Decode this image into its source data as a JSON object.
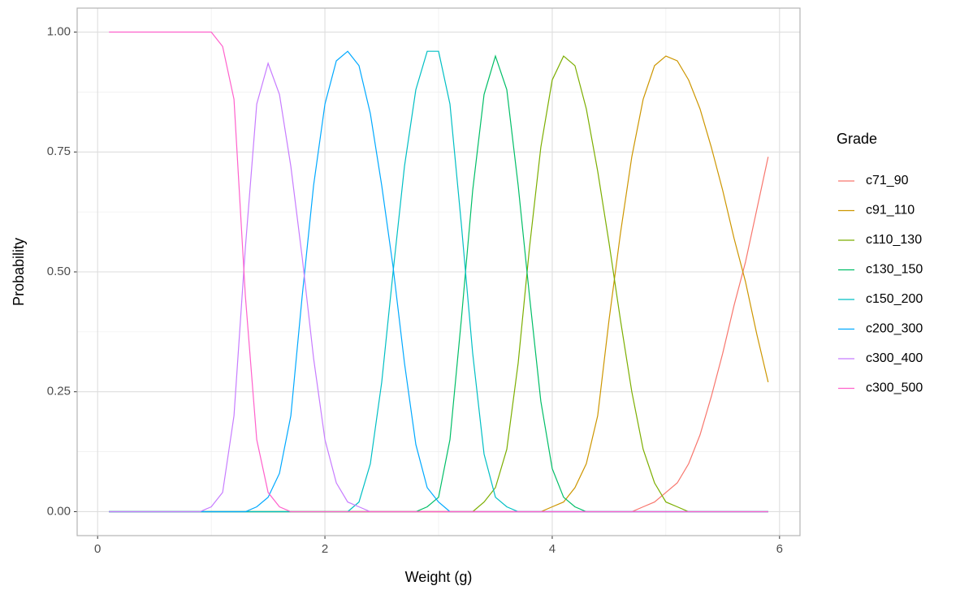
{
  "chart_data": {
    "type": "line",
    "x_label": "Weight (g)",
    "y_label": "Probability",
    "legend_title": "Grade",
    "x": [
      0.1,
      0.2,
      0.3,
      0.4,
      0.5,
      0.6,
      0.7,
      0.8,
      0.9,
      1.0,
      1.1,
      1.2,
      1.3,
      1.4,
      1.5,
      1.6,
      1.7,
      1.8,
      1.9,
      2.0,
      2.1,
      2.2,
      2.3,
      2.4,
      2.5,
      2.6,
      2.7,
      2.8,
      2.9,
      3.0,
      3.1,
      3.2,
      3.3,
      3.4,
      3.5,
      3.6,
      3.7,
      3.8,
      3.9,
      4.0,
      4.1,
      4.2,
      4.3,
      4.4,
      4.5,
      4.6,
      4.7,
      4.8,
      4.9,
      5.0,
      5.1,
      5.2,
      5.3,
      5.4,
      5.5,
      5.6,
      5.7,
      5.8,
      5.9
    ],
    "series": [
      {
        "name": "c71_90",
        "color": "#F8766D",
        "values": [
          0,
          0,
          0,
          0,
          0,
          0,
          0,
          0,
          0,
          0,
          0,
          0,
          0,
          0,
          0,
          0,
          0,
          0,
          0,
          0,
          0,
          0,
          0,
          0,
          0,
          0,
          0,
          0,
          0,
          0,
          0,
          0,
          0,
          0,
          0,
          0,
          0,
          0,
          0,
          0,
          0,
          0,
          0,
          0,
          0,
          0,
          0,
          0.01,
          0.02,
          0.04,
          0.06,
          0.1,
          0.16,
          0.24,
          0.33,
          0.43,
          0.52,
          0.63,
          0.74
        ]
      },
      {
        "name": "c91_110",
        "color": "#CD9600",
        "values": [
          0,
          0,
          0,
          0,
          0,
          0,
          0,
          0,
          0,
          0,
          0,
          0,
          0,
          0,
          0,
          0,
          0,
          0,
          0,
          0,
          0,
          0,
          0,
          0,
          0,
          0,
          0,
          0,
          0,
          0,
          0,
          0,
          0,
          0,
          0,
          0,
          0,
          0,
          0,
          0.01,
          0.02,
          0.05,
          0.1,
          0.2,
          0.4,
          0.58,
          0.74,
          0.86,
          0.93,
          0.95,
          0.94,
          0.9,
          0.84,
          0.76,
          0.67,
          0.57,
          0.48,
          0.37,
          0.27
        ]
      },
      {
        "name": "c110_130",
        "color": "#7CAE00",
        "values": [
          0,
          0,
          0,
          0,
          0,
          0,
          0,
          0,
          0,
          0,
          0,
          0,
          0,
          0,
          0,
          0,
          0,
          0,
          0,
          0,
          0,
          0,
          0,
          0,
          0,
          0,
          0,
          0,
          0,
          0,
          0,
          0,
          0,
          0.02,
          0.05,
          0.13,
          0.31,
          0.55,
          0.76,
          0.9,
          0.95,
          0.93,
          0.84,
          0.71,
          0.56,
          0.4,
          0.25,
          0.13,
          0.06,
          0.02,
          0.01,
          0,
          0,
          0,
          0,
          0,
          0,
          0,
          0
        ]
      },
      {
        "name": "c130_150",
        "color": "#00BE67",
        "values": [
          0,
          0,
          0,
          0,
          0,
          0,
          0,
          0,
          0,
          0,
          0,
          0,
          0,
          0,
          0,
          0,
          0,
          0,
          0,
          0,
          0,
          0,
          0,
          0,
          0,
          0,
          0,
          0,
          0.01,
          0.03,
          0.15,
          0.4,
          0.67,
          0.87,
          0.95,
          0.88,
          0.68,
          0.45,
          0.23,
          0.09,
          0.03,
          0.01,
          0,
          0,
          0,
          0,
          0,
          0,
          0,
          0,
          0,
          0,
          0,
          0,
          0,
          0,
          0,
          0,
          0
        ]
      },
      {
        "name": "c150_200",
        "color": "#00BFC4",
        "values": [
          0,
          0,
          0,
          0,
          0,
          0,
          0,
          0,
          0,
          0,
          0,
          0,
          0,
          0,
          0,
          0,
          0,
          0,
          0,
          0,
          0,
          0,
          0.02,
          0.1,
          0.27,
          0.5,
          0.72,
          0.88,
          0.96,
          0.96,
          0.85,
          0.6,
          0.33,
          0.12,
          0.03,
          0.01,
          0,
          0,
          0,
          0,
          0,
          0,
          0,
          0,
          0,
          0,
          0,
          0,
          0,
          0,
          0,
          0,
          0,
          0,
          0,
          0,
          0,
          0,
          0
        ]
      },
      {
        "name": "c200_300",
        "color": "#00A9FF",
        "values": [
          0,
          0,
          0,
          0,
          0,
          0,
          0,
          0,
          0,
          0,
          0,
          0,
          0,
          0.01,
          0.03,
          0.08,
          0.2,
          0.45,
          0.68,
          0.85,
          0.94,
          0.96,
          0.93,
          0.83,
          0.68,
          0.51,
          0.31,
          0.14,
          0.05,
          0.02,
          0,
          0,
          0,
          0,
          0,
          0,
          0,
          0,
          0,
          0,
          0,
          0,
          0,
          0,
          0,
          0,
          0,
          0,
          0,
          0,
          0,
          0,
          0,
          0,
          0,
          0,
          0,
          0,
          0
        ]
      },
      {
        "name": "c300_400",
        "color": "#C77CFF",
        "values": [
          0,
          0,
          0,
          0,
          0,
          0,
          0,
          0,
          0,
          0.01,
          0.04,
          0.2,
          0.55,
          0.85,
          0.935,
          0.87,
          0.72,
          0.53,
          0.32,
          0.15,
          0.06,
          0.02,
          0.01,
          0,
          0,
          0,
          0,
          0,
          0,
          0,
          0,
          0,
          0,
          0,
          0,
          0,
          0,
          0,
          0,
          0,
          0,
          0,
          0,
          0,
          0,
          0,
          0,
          0,
          0,
          0,
          0,
          0,
          0,
          0,
          0,
          0,
          0,
          0,
          0
        ]
      },
      {
        "name": "c300_500",
        "color": "#FF61CC",
        "values": [
          1,
          1,
          1,
          1,
          1,
          1,
          1,
          1,
          1,
          1,
          0.97,
          0.86,
          0.45,
          0.15,
          0.04,
          0.01,
          0,
          0,
          0,
          0,
          0,
          0,
          0,
          0,
          0,
          0,
          0,
          0,
          0,
          0,
          0,
          0,
          0,
          0,
          0,
          0,
          0,
          0,
          0,
          0,
          0,
          0,
          0,
          0,
          0,
          0,
          0,
          0,
          0,
          0,
          0,
          0,
          0,
          0,
          0,
          0,
          0,
          0,
          0
        ]
      }
    ],
    "xlim": [
      -0.18,
      6.18
    ],
    "xticks": [
      0,
      2,
      4,
      6
    ],
    "ylim": [
      -0.05,
      1.05
    ],
    "yticks": [
      {
        "value": 0,
        "label": "0.00"
      },
      {
        "value": 0.25,
        "label": "0.25"
      },
      {
        "value": 0.5,
        "label": "0.50"
      },
      {
        "value": 0.75,
        "label": "0.75"
      },
      {
        "value": 1,
        "label": "1.00"
      }
    ],
    "grid": true
  }
}
